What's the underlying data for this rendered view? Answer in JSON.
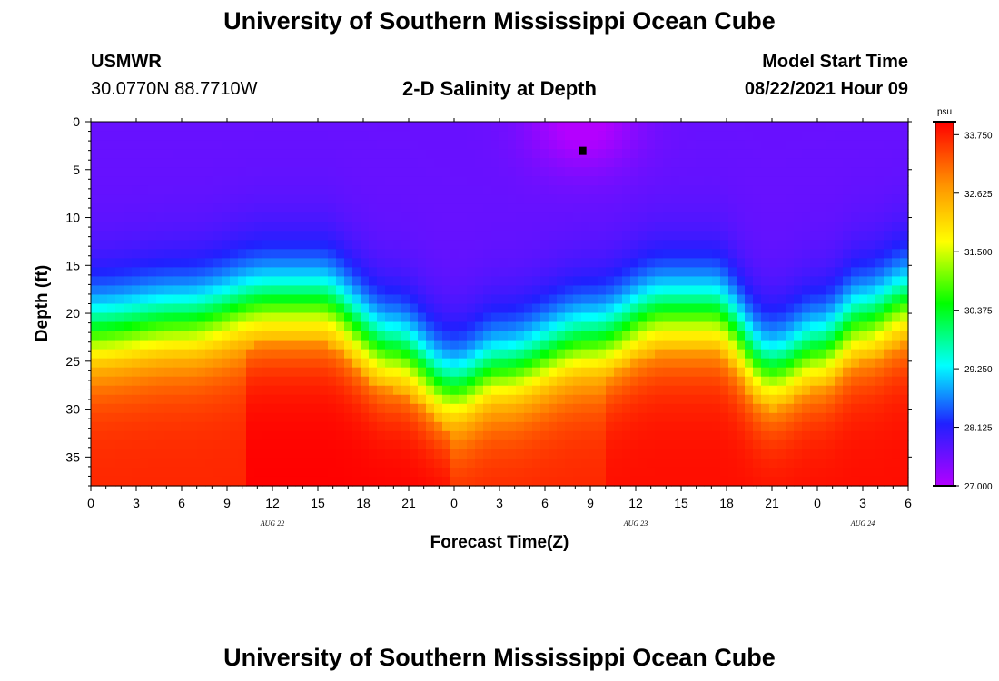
{
  "header": {
    "title_top": "University of Southern Mississippi Ocean Cube",
    "title_bottom": "University of Southern Mississippi Ocean Cube",
    "station": "USMWR",
    "coords": "30.0770N  88.7710W",
    "plot_title": "2-D Salinity at Depth",
    "model_label": "Model Start Time",
    "model_time": "08/22/2021 Hour 09"
  },
  "chart_data": {
    "type": "heatmap",
    "title": "2-D Salinity at Depth",
    "xlabel": "Forecast Time(Z)",
    "ylabel": "Depth (ft)",
    "xlim": [
      0,
      54
    ],
    "ylim": [
      0,
      38
    ],
    "x_ticks": [
      "0",
      "3",
      "6",
      "9",
      "12",
      "15",
      "18",
      "21",
      "0",
      "3",
      "6",
      "9",
      "12",
      "15",
      "18",
      "21",
      "0",
      "3",
      "6"
    ],
    "y_ticks": [
      0,
      5,
      10,
      15,
      20,
      25,
      30,
      35
    ],
    "date_labels": [
      {
        "text": "AUG  22",
        "x_hours": 12
      },
      {
        "text": "AUG  23",
        "x_hours": 36
      },
      {
        "text": "AUG  24",
        "x_hours": 51
      }
    ],
    "colorbar": {
      "unit": "psu",
      "min": 27.0,
      "max": 34.0,
      "ticks": [
        "27.000",
        "28.125",
        "29.250",
        "30.375",
        "31.500",
        "32.625",
        "33.750"
      ],
      "colors": [
        "#b400ff",
        "#2020ff",
        "#00ffff",
        "#00ff00",
        "#ffff00",
        "#ff9000",
        "#ff0000"
      ]
    },
    "marker": {
      "x_hours": 32.5,
      "depth_ft": 3
    },
    "description": "Low salinity (~27-28 psu) near surface, high salinity (~33.5-34 psu) near bottom; halocline depth oscillates with tidal period",
    "halocline_depth_ft": [
      {
        "x_hours": 0,
        "depth": 18
      },
      {
        "x_hours": 6,
        "depth": 17
      },
      {
        "x_hours": 12,
        "depth": 15
      },
      {
        "x_hours": 15,
        "depth": 15
      },
      {
        "x_hours": 20,
        "depth": 20
      },
      {
        "x_hours": 24,
        "depth": 24
      },
      {
        "x_hours": 27,
        "depth": 22
      },
      {
        "x_hours": 33,
        "depth": 19
      },
      {
        "x_hours": 38,
        "depth": 16
      },
      {
        "x_hours": 41,
        "depth": 16
      },
      {
        "x_hours": 45,
        "depth": 22
      },
      {
        "x_hours": 48,
        "depth": 20
      },
      {
        "x_hours": 51,
        "depth": 17
      },
      {
        "x_hours": 54,
        "depth": 15
      }
    ]
  }
}
